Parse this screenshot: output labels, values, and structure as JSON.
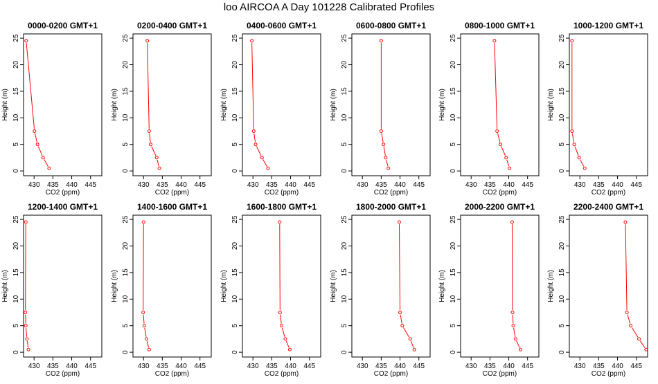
{
  "figure": {
    "title": "loo AIRCOA A  Day 101228  Calibrated Profiles"
  },
  "colors": {
    "series": "#ff0000",
    "axis": "#000000",
    "background": "#ffffff"
  },
  "chart_data": [
    {
      "type": "line",
      "title": "0000-0200 GMT+1",
      "xlabel": "CO2 (ppm)",
      "ylabel": "Height (m)",
      "xlim": [
        427.2,
        448.0
      ],
      "ylim": [
        -0.9,
        25.8
      ],
      "xticks": [
        430,
        435,
        440,
        445
      ],
      "yticks": [
        0,
        5,
        10,
        15,
        20,
        25
      ],
      "grid": false,
      "series": [
        {
          "x": [
            427.9,
            430.1,
            430.9,
            432.4,
            434.0
          ],
          "y": [
            24.5,
            7.5,
            5.0,
            2.5,
            0.5
          ]
        }
      ]
    },
    {
      "type": "line",
      "title": "0200-0400 GMT+1",
      "xlabel": "CO2 (ppm)",
      "ylabel": "Height (m)",
      "xlim": [
        427.2,
        448.0
      ],
      "ylim": [
        -0.9,
        25.8
      ],
      "xticks": [
        430,
        435,
        440,
        445
      ],
      "yticks": [
        0,
        5,
        10,
        15,
        20,
        25
      ],
      "grid": false,
      "series": [
        {
          "x": [
            431.0,
            431.5,
            431.9,
            433.5,
            434.2
          ],
          "y": [
            24.5,
            7.5,
            5.0,
            2.5,
            0.5
          ]
        }
      ]
    },
    {
      "type": "line",
      "title": "0400-0600 GMT+1",
      "xlabel": "CO2 (ppm)",
      "ylabel": "Height (m)",
      "xlim": [
        427.2,
        448.0
      ],
      "ylim": [
        -0.9,
        25.8
      ],
      "xticks": [
        430,
        435,
        440,
        445
      ],
      "yticks": [
        0,
        5,
        10,
        15,
        20,
        25
      ],
      "grid": false,
      "series": [
        {
          "x": [
            429.7,
            430.2,
            430.7,
            432.4,
            434.0
          ],
          "y": [
            24.5,
            7.5,
            5.0,
            2.5,
            0.5
          ]
        }
      ]
    },
    {
      "type": "line",
      "title": "0600-0800 GMT+1",
      "xlabel": "CO2 (ppm)",
      "ylabel": "Height (m)",
      "xlim": [
        427.2,
        448.0
      ],
      "ylim": [
        -0.9,
        25.8
      ],
      "xticks": [
        430,
        435,
        440,
        445
      ],
      "yticks": [
        0,
        5,
        10,
        15,
        20,
        25
      ],
      "grid": false,
      "series": [
        {
          "x": [
            435.0,
            435.0,
            435.6,
            436.2,
            436.9
          ],
          "y": [
            24.5,
            7.5,
            5.0,
            2.5,
            0.5
          ]
        }
      ]
    },
    {
      "type": "line",
      "title": "0800-1000 GMT+1",
      "xlabel": "CO2 (ppm)",
      "ylabel": "Height (m)",
      "xlim": [
        427.2,
        448.0
      ],
      "ylim": [
        -0.9,
        25.8
      ],
      "xticks": [
        430,
        435,
        440,
        445
      ],
      "yticks": [
        0,
        5,
        10,
        15,
        20,
        25
      ],
      "grid": false,
      "series": [
        {
          "x": [
            436.2,
            436.9,
            437.8,
            439.3,
            440.2
          ],
          "y": [
            24.5,
            7.5,
            5.0,
            2.5,
            0.5
          ]
        }
      ]
    },
    {
      "type": "line",
      "title": "1000-1200 GMT+1",
      "xlabel": "CO2 (ppm)",
      "ylabel": "Height (m)",
      "xlim": [
        427.2,
        448.0
      ],
      "ylim": [
        -0.9,
        25.8
      ],
      "xticks": [
        430,
        435,
        440,
        445
      ],
      "yticks": [
        0,
        5,
        10,
        15,
        20,
        25
      ],
      "grid": false,
      "series": [
        {
          "x": [
            427.9,
            427.9,
            428.5,
            429.8,
            431.3
          ],
          "y": [
            24.5,
            7.5,
            5.0,
            2.5,
            0.5
          ]
        }
      ]
    },
    {
      "type": "line",
      "title": "1200-1400 GMT+1",
      "xlabel": "CO2 (ppm)",
      "ylabel": "Height (m)",
      "xlim": [
        427.2,
        448.0
      ],
      "ylim": [
        -0.9,
        25.8
      ],
      "xticks": [
        430,
        435,
        440,
        445
      ],
      "yticks": [
        0,
        5,
        10,
        15,
        20,
        25
      ],
      "grid": false,
      "series": [
        {
          "x": [
            427.8,
            427.7,
            427.8,
            428.1,
            428.5
          ],
          "y": [
            24.5,
            7.5,
            5.0,
            2.5,
            0.5
          ]
        }
      ]
    },
    {
      "type": "line",
      "title": "1400-1600 GMT+1",
      "xlabel": "CO2 (ppm)",
      "ylabel": "Height (m)",
      "xlim": [
        427.2,
        448.0
      ],
      "ylim": [
        -0.9,
        25.8
      ],
      "xticks": [
        430,
        435,
        440,
        445
      ],
      "yticks": [
        0,
        5,
        10,
        15,
        20,
        25
      ],
      "grid": false,
      "series": [
        {
          "x": [
            430.0,
            429.9,
            430.2,
            430.8,
            431.5
          ],
          "y": [
            24.5,
            7.5,
            5.0,
            2.5,
            0.5
          ]
        }
      ]
    },
    {
      "type": "line",
      "title": "1600-1800 GMT+1",
      "xlabel": "CO2 (ppm)",
      "ylabel": "Height (m)",
      "xlim": [
        427.2,
        448.0
      ],
      "ylim": [
        -0.9,
        25.8
      ],
      "xticks": [
        430,
        435,
        440,
        445
      ],
      "yticks": [
        0,
        5,
        10,
        15,
        20,
        25
      ],
      "grid": false,
      "series": [
        {
          "x": [
            437.1,
            437.2,
            437.6,
            438.6,
            439.8
          ],
          "y": [
            24.5,
            7.5,
            5.0,
            2.5,
            0.5
          ]
        }
      ]
    },
    {
      "type": "line",
      "title": "1800-2000 GMT+1",
      "xlabel": "CO2 (ppm)",
      "ylabel": "Height (m)",
      "xlim": [
        427.2,
        448.0
      ],
      "ylim": [
        -0.9,
        25.8
      ],
      "xticks": [
        430,
        435,
        440,
        445
      ],
      "yticks": [
        0,
        5,
        10,
        15,
        20,
        25
      ],
      "grid": false,
      "series": [
        {
          "x": [
            439.8,
            440.0,
            440.6,
            442.7,
            443.8
          ],
          "y": [
            24.5,
            7.5,
            5.0,
            2.5,
            0.5
          ]
        }
      ]
    },
    {
      "type": "line",
      "title": "2000-2200 GMT+1",
      "xlabel": "CO2 (ppm)",
      "ylabel": "Height (m)",
      "xlim": [
        427.2,
        448.0
      ],
      "ylim": [
        -0.9,
        25.8
      ],
      "xticks": [
        430,
        435,
        440,
        445
      ],
      "yticks": [
        0,
        5,
        10,
        15,
        20,
        25
      ],
      "grid": false,
      "series": [
        {
          "x": [
            440.9,
            441.0,
            441.2,
            441.8,
            443.1
          ],
          "y": [
            24.5,
            7.5,
            5.0,
            2.5,
            0.5
          ]
        }
      ]
    },
    {
      "type": "line",
      "title": "2200-2400 GMT+1",
      "xlabel": "CO2 (ppm)",
      "ylabel": "Height (m)",
      "xlim": [
        427.2,
        448.0
      ],
      "ylim": [
        -0.9,
        25.8
      ],
      "xticks": [
        430,
        435,
        440,
        445
      ],
      "yticks": [
        0,
        5,
        10,
        15,
        20,
        25
      ],
      "grid": false,
      "series": [
        {
          "x": [
            442.1,
            442.5,
            443.5,
            445.7,
            447.6
          ],
          "y": [
            24.5,
            7.5,
            5.0,
            2.5,
            0.5
          ]
        }
      ]
    }
  ]
}
